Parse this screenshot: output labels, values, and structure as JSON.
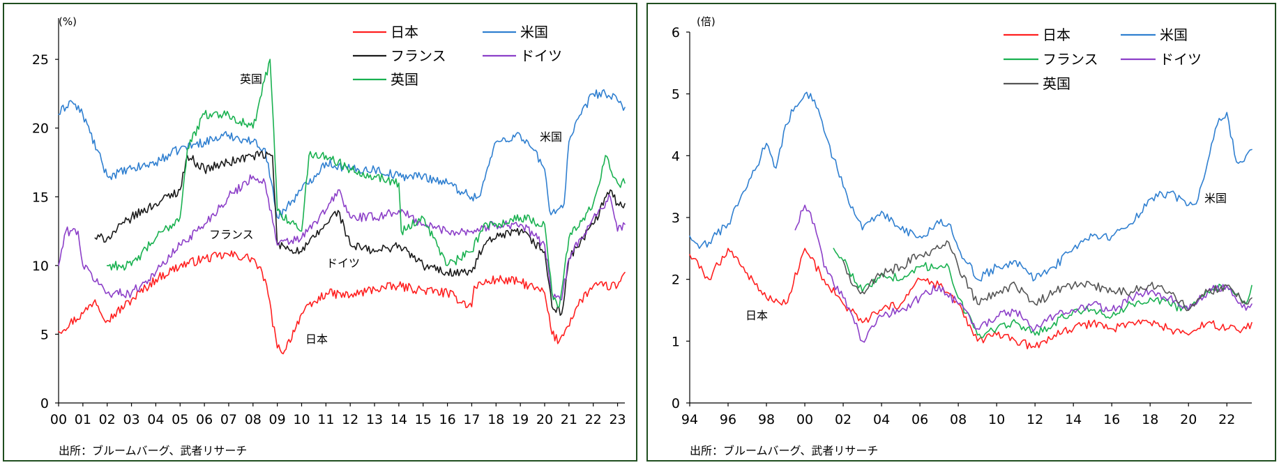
{
  "colors": {
    "japan": "#ff1f1f",
    "us": "#2f7fd0",
    "france_left": "#1a1a1a",
    "germany": "#8c3fc8",
    "uk_left": "#19b150",
    "france_right": "#19b150",
    "uk_right": "#555555"
  },
  "chart_data": [
    {
      "type": "line",
      "unit": "(%)",
      "x_ticks": [
        "00",
        "01",
        "02",
        "03",
        "04",
        "05",
        "06",
        "07",
        "08",
        "09",
        "10",
        "11",
        "12",
        "13",
        "14",
        "15",
        "16",
        "17",
        "18",
        "19",
        "20",
        "21",
        "22",
        "23"
      ],
      "y_ticks": [
        "0",
        "5",
        "10",
        "15",
        "20",
        "25"
      ],
      "ylim": [
        0,
        28
      ],
      "xlim": [
        2000.0,
        2023.3
      ],
      "source": "出所：ブルームバーグ、武者リサーチ",
      "annotations": {
        "uk": "英国",
        "france": "フランス",
        "germany": "ドイツ",
        "japan": "日本",
        "us": "米国"
      },
      "series": [
        {
          "key": "japan",
          "name": "日本",
          "x": [
            2000.0,
            2001.0,
            2001.5,
            2002.0,
            2003.0,
            2004.0,
            2005.0,
            2006.0,
            2007.0,
            2008.0,
            2008.5,
            2009.0,
            2009.3,
            2010.0,
            2011.0,
            2012.0,
            2013.0,
            2014.0,
            2015.0,
            2016.0,
            2017.0,
            2017.1,
            2018.0,
            2019.0,
            2020.0,
            2020.3,
            2020.6,
            2020.9,
            2021.5,
            2022.0,
            2023.0,
            2023.3
          ],
          "y": [
            5.2,
            6.5,
            7.5,
            6.0,
            7.5,
            9.0,
            10.0,
            10.5,
            10.8,
            10.5,
            9.0,
            4.0,
            3.8,
            6.5,
            8.0,
            7.8,
            8.3,
            8.5,
            8.2,
            8.0,
            7.0,
            8.5,
            9.0,
            8.8,
            8.0,
            5.0,
            4.5,
            5.5,
            7.5,
            8.5,
            8.5,
            9.5
          ]
        },
        {
          "key": "us",
          "name": "米国",
          "x": [
            2000.0,
            2000.5,
            2001.0,
            2002.0,
            2003.0,
            2004.0,
            2005.0,
            2006.0,
            2007.0,
            2008.0,
            2008.5,
            2009.0,
            2010.0,
            2011.0,
            2012.0,
            2013.0,
            2014.0,
            2015.0,
            2016.0,
            2017.0,
            2017.3,
            2018.0,
            2019.0,
            2019.5,
            2020.0,
            2020.2,
            2020.5,
            2020.8,
            2021.0,
            2021.5,
            2022.0,
            2022.5,
            2023.0,
            2023.3
          ],
          "y": [
            21.0,
            22.0,
            21.0,
            16.5,
            17.0,
            17.5,
            18.5,
            19.0,
            19.5,
            19.0,
            18.5,
            13.5,
            15.5,
            17.5,
            17.0,
            17.0,
            16.5,
            16.5,
            16.0,
            15.0,
            15.0,
            19.0,
            19.5,
            18.5,
            17.0,
            14.0,
            14.0,
            14.5,
            19.0,
            21.0,
            22.5,
            22.5,
            22.0,
            21.5
          ]
        },
        {
          "key": "france",
          "name": "フランス",
          "x": [
            2001.5,
            2002.0,
            2003.0,
            2004.0,
            2005.0,
            2005.3,
            2006.0,
            2007.0,
            2008.0,
            2008.8,
            2009.0,
            2010.0,
            2011.0,
            2011.5,
            2012.0,
            2013.0,
            2014.0,
            2015.0,
            2016.0,
            2017.0,
            2017.5,
            2018.0,
            2019.0,
            2020.0,
            2020.3,
            2020.7,
            2021.0,
            2022.0,
            2022.7,
            2023.0,
            2023.3
          ],
          "y": [
            12.0,
            12.0,
            13.5,
            14.5,
            15.5,
            18.0,
            17.0,
            17.5,
            18.0,
            18.0,
            11.5,
            11.0,
            13.0,
            14.0,
            11.5,
            11.0,
            11.5,
            10.0,
            9.5,
            9.5,
            11.5,
            12.0,
            12.5,
            11.0,
            7.0,
            6.5,
            10.5,
            13.0,
            15.5,
            14.5,
            14.5
          ]
        },
        {
          "key": "germany",
          "name": "ドイツ",
          "x": [
            2000.0,
            2000.3,
            2000.8,
            2001.0,
            2002.0,
            2003.0,
            2004.0,
            2005.0,
            2006.0,
            2007.0,
            2008.0,
            2008.5,
            2009.0,
            2010.0,
            2011.0,
            2011.5,
            2012.0,
            2013.0,
            2014.0,
            2015.0,
            2016.0,
            2017.0,
            2018.0,
            2019.0,
            2020.0,
            2020.3,
            2020.7,
            2021.0,
            2022.0,
            2022.7,
            2023.0,
            2023.3
          ],
          "y": [
            10.0,
            12.5,
            12.5,
            10.0,
            8.0,
            8.0,
            9.5,
            11.5,
            13.0,
            15.0,
            16.5,
            16.0,
            11.5,
            12.0,
            14.0,
            15.5,
            13.5,
            13.5,
            14.0,
            13.0,
            12.5,
            12.5,
            13.0,
            13.0,
            11.5,
            8.0,
            7.5,
            10.5,
            13.5,
            15.0,
            12.5,
            13.0
          ]
        },
        {
          "key": "uk",
          "name": "英国",
          "x": [
            2002.0,
            2003.0,
            2004.0,
            2005.0,
            2005.3,
            2006.0,
            2007.0,
            2008.0,
            2008.7,
            2008.85,
            2009.0,
            2010.0,
            2010.3,
            2011.0,
            2012.0,
            2013.0,
            2014.0,
            2014.1,
            2015.0,
            2016.0,
            2017.0,
            2017.5,
            2018.0,
            2019.0,
            2020.0,
            2020.3,
            2020.6,
            2021.0,
            2022.0,
            2022.5,
            2023.0,
            2023.3
          ],
          "y": [
            10.0,
            10.0,
            12.0,
            13.5,
            18.5,
            21.0,
            21.0,
            20.0,
            25.0,
            20.0,
            14.0,
            12.5,
            18.0,
            18.0,
            17.0,
            16.5,
            16.0,
            12.5,
            13.5,
            10.0,
            11.0,
            13.0,
            13.0,
            13.5,
            13.0,
            8.0,
            7.0,
            12.0,
            14.5,
            18.0,
            16.0,
            16.0
          ]
        }
      ]
    },
    {
      "type": "line",
      "unit": "(倍)",
      "x_ticks": [
        "94",
        "96",
        "98",
        "00",
        "02",
        "04",
        "06",
        "08",
        "10",
        "12",
        "14",
        "16",
        "18",
        "20",
        "22"
      ],
      "y_ticks": [
        "0",
        "1",
        "2",
        "3",
        "4",
        "5",
        "6"
      ],
      "ylim": [
        0,
        6
      ],
      "xlim": [
        1994.0,
        2023.3
      ],
      "source": "出所：ブルームバーグ、武者リサーチ",
      "annotations": {
        "us": "米国",
        "japan": "日本"
      },
      "series": [
        {
          "key": "japan",
          "name": "日本",
          "x": [
            1994.0,
            1995.0,
            1996.0,
            1997.0,
            1998.0,
            1999.0,
            2000.0,
            2001.0,
            2002.0,
            2003.0,
            2004.0,
            2005.0,
            2006.0,
            2007.0,
            2008.0,
            2009.0,
            2010.0,
            2011.0,
            2012.0,
            2013.0,
            2014.0,
            2015.0,
            2016.0,
            2017.0,
            2018.0,
            2019.0,
            2020.0,
            2021.0,
            2022.0,
            2023.0,
            2023.3
          ],
          "y": [
            2.4,
            2.0,
            2.5,
            2.1,
            1.7,
            1.6,
            2.5,
            2.0,
            1.6,
            1.3,
            1.5,
            1.6,
            2.0,
            1.9,
            1.6,
            1.0,
            1.1,
            1.0,
            0.9,
            1.1,
            1.2,
            1.3,
            1.2,
            1.3,
            1.3,
            1.2,
            1.1,
            1.3,
            1.2,
            1.2,
            1.3
          ]
        },
        {
          "key": "us",
          "name": "米国",
          "x": [
            1994.0,
            1994.5,
            1995.0,
            1996.0,
            1997.0,
            1998.0,
            1998.5,
            1999.0,
            1999.5,
            2000.0,
            2000.5,
            2001.0,
            2002.0,
            2003.0,
            2004.0,
            2005.0,
            2006.0,
            2007.0,
            2007.5,
            2008.0,
            2009.0,
            2010.0,
            2011.0,
            2012.0,
            2013.0,
            2014.0,
            2015.0,
            2016.0,
            2017.0,
            2018.0,
            2019.0,
            2020.0,
            2020.5,
            2021.0,
            2021.5,
            2022.0,
            2022.5,
            2023.0,
            2023.3
          ],
          "y": [
            2.7,
            2.5,
            2.6,
            2.9,
            3.5,
            4.2,
            3.8,
            4.5,
            4.8,
            5.0,
            4.9,
            4.4,
            3.5,
            2.8,
            3.1,
            2.8,
            2.7,
            2.9,
            2.9,
            2.5,
            2.0,
            2.2,
            2.3,
            2.0,
            2.2,
            2.5,
            2.7,
            2.7,
            2.9,
            3.3,
            3.4,
            3.2,
            3.3,
            3.9,
            4.5,
            4.7,
            3.9,
            4.0,
            4.1
          ]
        },
        {
          "key": "france",
          "name": "フランス",
          "x": [
            2001.5,
            2002.0,
            2003.0,
            2004.0,
            2005.0,
            2006.0,
            2007.0,
            2007.5,
            2008.0,
            2009.0,
            2010.0,
            2011.0,
            2012.0,
            2013.0,
            2014.0,
            2015.0,
            2016.0,
            2017.0,
            2018.0,
            2019.0,
            2020.0,
            2021.0,
            2022.0,
            2023.0,
            2023.3
          ],
          "y": [
            2.5,
            2.3,
            1.8,
            2.1,
            2.0,
            2.2,
            2.2,
            2.2,
            1.7,
            1.1,
            1.2,
            1.3,
            1.1,
            1.3,
            1.5,
            1.5,
            1.4,
            1.6,
            1.7,
            1.6,
            1.5,
            1.8,
            1.9,
            1.6,
            1.9
          ]
        },
        {
          "key": "germany",
          "name": "ドイツ",
          "x": [
            1999.5,
            2000.0,
            2000.5,
            2001.0,
            2002.0,
            2002.5,
            2003.0,
            2004.0,
            2005.0,
            2006.0,
            2007.0,
            2008.0,
            2009.0,
            2010.0,
            2011.0,
            2012.0,
            2013.0,
            2014.0,
            2015.0,
            2016.0,
            2017.0,
            2018.0,
            2019.0,
            2020.0,
            2021.0,
            2022.0,
            2023.0,
            2023.3
          ],
          "y": [
            2.8,
            3.2,
            2.9,
            2.2,
            1.7,
            1.4,
            1.0,
            1.4,
            1.5,
            1.7,
            1.9,
            1.6,
            1.2,
            1.4,
            1.5,
            1.2,
            1.4,
            1.5,
            1.6,
            1.5,
            1.7,
            1.8,
            1.7,
            1.5,
            1.8,
            1.9,
            1.5,
            1.6
          ]
        },
        {
          "key": "uk",
          "name": "英国",
          "x": [
            2002.0,
            2002.5,
            2003.0,
            2004.0,
            2005.0,
            2006.0,
            2007.0,
            2007.5,
            2008.0,
            2009.0,
            2010.0,
            2011.0,
            2012.0,
            2013.0,
            2014.0,
            2015.0,
            2016.0,
            2017.0,
            2018.0,
            2019.0,
            2020.0,
            2021.0,
            2022.0,
            2023.0,
            2023.3
          ],
          "y": [
            2.3,
            1.9,
            1.8,
            2.1,
            2.2,
            2.4,
            2.5,
            2.6,
            2.2,
            1.6,
            1.8,
            1.9,
            1.6,
            1.8,
            1.9,
            1.9,
            1.8,
            1.8,
            1.9,
            1.8,
            1.5,
            1.8,
            1.9,
            1.6,
            1.7
          ]
        }
      ]
    }
  ]
}
